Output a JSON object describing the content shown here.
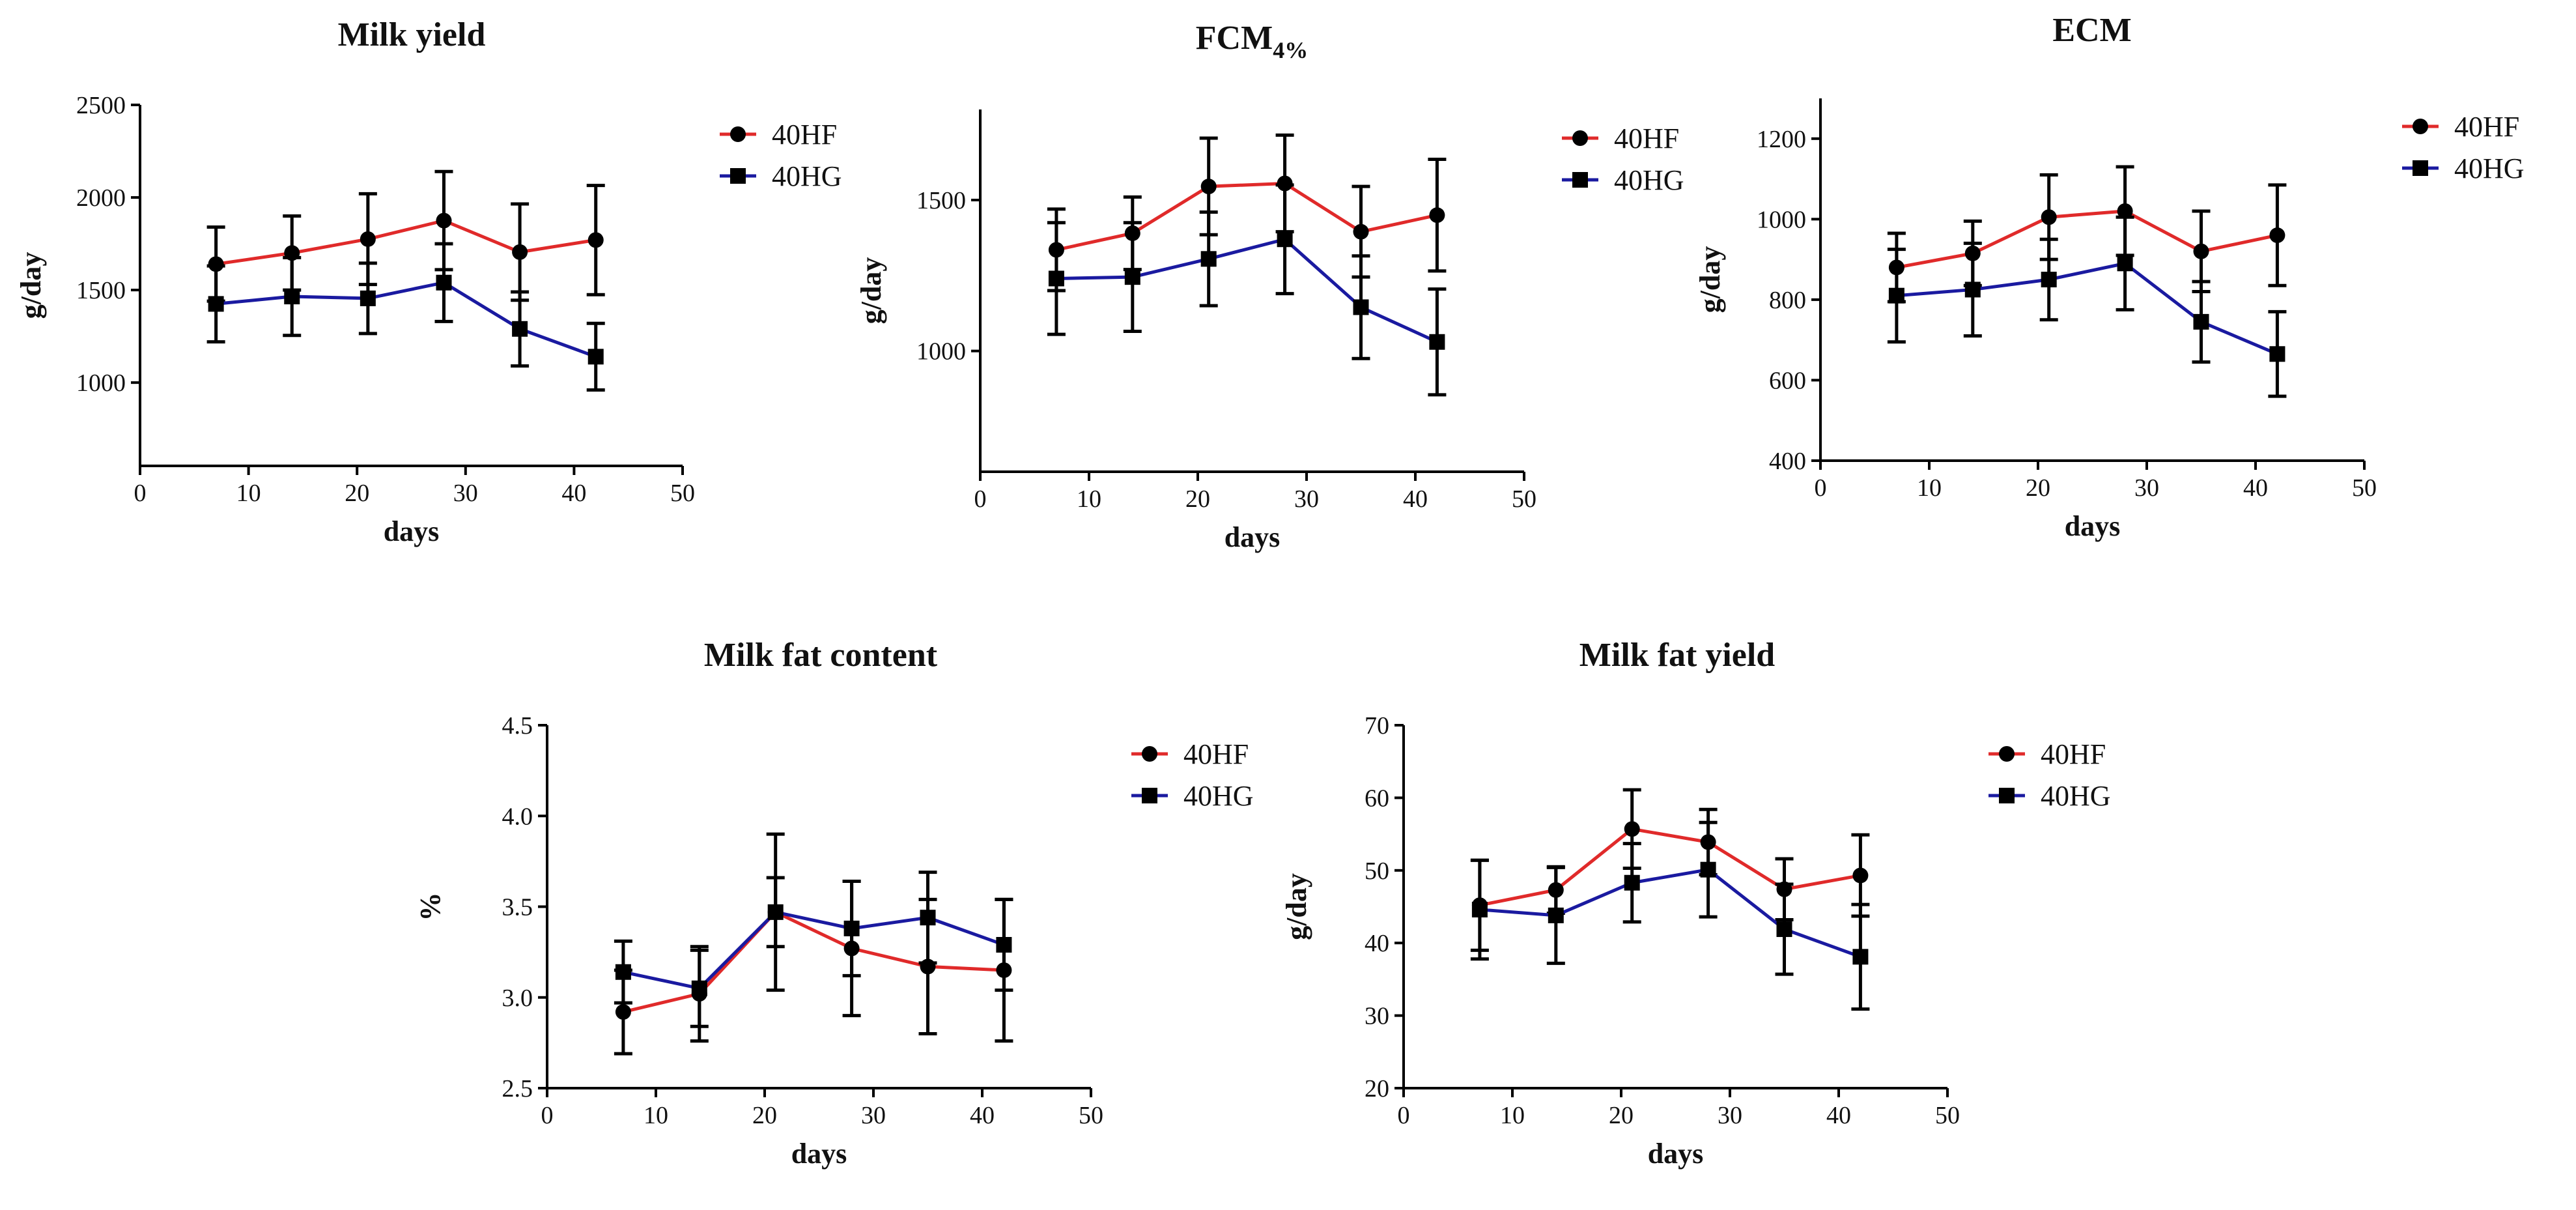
{
  "colors": {
    "40HF": "#e02a2a",
    "40HG": "#1a1aa0",
    "marker": "#000000"
  },
  "chart_data": [
    {
      "type": "line",
      "title": "Milk yield",
      "xlabel": "days",
      "ylabel": "g/day",
      "xlim": [
        0,
        50
      ],
      "ylim": [
        550,
        2500
      ],
      "xticks": [
        0,
        10,
        20,
        30,
        40,
        50
      ],
      "yticks": [
        1000,
        1500,
        2000,
        2500
      ],
      "x": [
        7,
        14,
        21,
        28,
        35,
        42
      ],
      "legend": "top-right",
      "series": [
        {
          "name": "40HF",
          "marker": "circle",
          "values": [
            1640,
            1700,
            1775,
            1875,
            1705,
            1770
          ],
          "error": [
            200,
            200,
            245,
            265,
            260,
            295
          ]
        },
        {
          "name": "40HG",
          "marker": "square",
          "values": [
            1425,
            1465,
            1455,
            1540,
            1290,
            1140
          ],
          "error": [
            205,
            210,
            190,
            210,
            200,
            180
          ]
        }
      ]
    },
    {
      "type": "line",
      "title": "FCM",
      "title_sub": "4%",
      "xlabel": "days",
      "ylabel": "g/day",
      "xlim": [
        0,
        50
      ],
      "ylim": [
        600,
        1800
      ],
      "xticks": [
        0,
        10,
        20,
        30,
        40,
        50
      ],
      "yticks": [
        1000,
        1500
      ],
      "x": [
        7,
        14,
        21,
        28,
        35,
        42
      ],
      "legend": "top-right",
      "series": [
        {
          "name": "40HF",
          "marker": "circle",
          "values": [
            1335,
            1390,
            1545,
            1555,
            1395,
            1450
          ],
          "error": [
            135,
            120,
            160,
            160,
            150,
            185
          ]
        },
        {
          "name": "40HG",
          "marker": "square",
          "values": [
            1240,
            1245,
            1305,
            1370,
            1145,
            1030
          ],
          "error": [
            185,
            180,
            155,
            180,
            170,
            175
          ]
        }
      ]
    },
    {
      "type": "line",
      "title": "ECM",
      "xlabel": "days",
      "ylabel": "g/day",
      "xlim": [
        0,
        50
      ],
      "ylim": [
        400,
        1300
      ],
      "xticks": [
        0,
        10,
        20,
        30,
        40,
        50
      ],
      "yticks": [
        400,
        600,
        800,
        1000,
        1200
      ],
      "x": [
        7,
        14,
        21,
        28,
        35,
        42
      ],
      "legend": "top-right",
      "series": [
        {
          "name": "40HF",
          "marker": "circle",
          "values": [
            880,
            915,
            1005,
            1020,
            920,
            960
          ],
          "error": [
            85,
            80,
            105,
            110,
            100,
            125
          ]
        },
        {
          "name": "40HG",
          "marker": "square",
          "values": [
            810,
            825,
            850,
            890,
            745,
            665
          ],
          "error": [
            115,
            115,
            100,
            115,
            100,
            105
          ]
        }
      ]
    },
    {
      "type": "line",
      "title": "Milk fat content",
      "xlabel": "days",
      "ylabel": "%",
      "xlim": [
        0,
        50
      ],
      "ylim": [
        2.5,
        4.5
      ],
      "xticks": [
        0,
        10,
        20,
        30,
        40,
        50
      ],
      "yticks": [
        "2.5",
        "3.0",
        "3.5",
        "4.0",
        "4.5"
      ],
      "x": [
        7,
        14,
        21,
        28,
        35,
        42
      ],
      "legend": "top-right",
      "series": [
        {
          "name": "40HF",
          "marker": "circle",
          "values": [
            2.92,
            3.02,
            3.47,
            3.27,
            3.17,
            3.15
          ],
          "error": [
            0.23,
            0.26,
            0.43,
            0.37,
            0.37,
            0.39
          ]
        },
        {
          "name": "40HG",
          "marker": "square",
          "values": [
            3.14,
            3.05,
            3.47,
            3.38,
            3.44,
            3.29
          ],
          "error": [
            0.17,
            0.21,
            0.19,
            0.26,
            0.25,
            0.25
          ]
        }
      ]
    },
    {
      "type": "line",
      "title": "Milk fat yield",
      "xlabel": "days",
      "ylabel": "g/day",
      "xlim": [
        0,
        50
      ],
      "ylim": [
        20,
        70
      ],
      "xticks": [
        0,
        10,
        20,
        30,
        40,
        50
      ],
      "yticks": [
        20,
        30,
        40,
        50,
        60,
        70
      ],
      "x": [
        7,
        14,
        21,
        28,
        35,
        42
      ],
      "legend": "top-right",
      "series": [
        {
          "name": "40HF",
          "marker": "circle",
          "values": [
            45.2,
            47.3,
            55.7,
            53.9,
            47.4,
            49.3
          ],
          "error": [
            6.2,
            3.2,
            5.4,
            4.5,
            4.2,
            5.6
          ]
        },
        {
          "name": "40HG",
          "marker": "square",
          "values": [
            44.6,
            43.8,
            48.3,
            50.1,
            41.9,
            38.1
          ],
          "error": [
            6.8,
            6.6,
            5.4,
            6.5,
            6.2,
            7.2
          ]
        }
      ]
    }
  ]
}
